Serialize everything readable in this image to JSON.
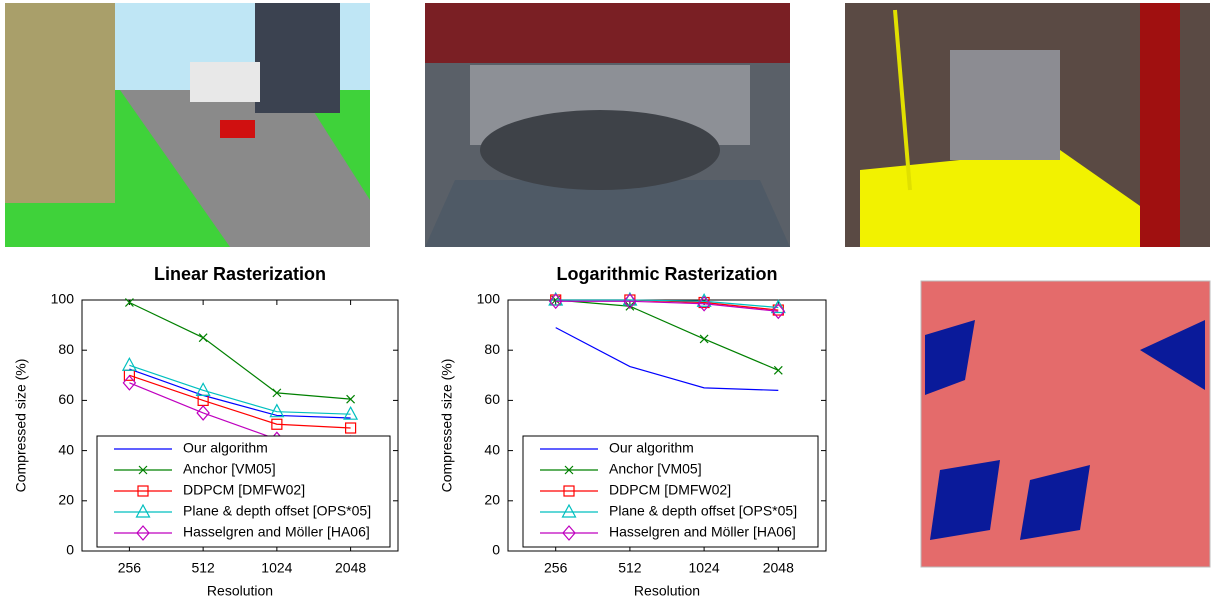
{
  "chart_data": [
    {
      "type": "line",
      "title": "Linear Rasterization",
      "xlabel": "Resolution",
      "ylabel": "Compressed size (%)",
      "categories": [
        "256",
        "512",
        "1024",
        "2048"
      ],
      "ylim": [
        0,
        100
      ],
      "yticks": [
        0,
        20,
        40,
        60,
        80,
        100
      ],
      "series": [
        {
          "name": "Our algorithm",
          "color": "#0000ff",
          "values": [
            72.5,
            62,
            54,
            53
          ]
        },
        {
          "name": "Anchor [VM05]",
          "color": "#008000",
          "marker": "x",
          "values": [
            99,
            85,
            63,
            60.5
          ]
        },
        {
          "name": "DDPCM [DMFW02]",
          "color": "#ff0000",
          "marker": "square",
          "values": [
            70,
            60,
            50.5,
            49
          ]
        },
        {
          "name": "Plane & depth offset [OPS*05]",
          "color": "#00bfbf",
          "marker": "triangle",
          "values": [
            74,
            64,
            55.5,
            54.5
          ]
        },
        {
          "name": "Hasselgren and Möller [HA06]",
          "color": "#bf00bf",
          "marker": "diamond",
          "values": [
            67,
            55,
            44.5,
            43
          ]
        }
      ]
    },
    {
      "type": "line",
      "title": "Logarithmic Rasterization",
      "xlabel": "Resolution",
      "ylabel": "Compressed size (%)",
      "categories": [
        "256",
        "512",
        "1024",
        "2048"
      ],
      "ylim": [
        0,
        100
      ],
      "yticks": [
        0,
        20,
        40,
        60,
        80,
        100
      ],
      "series": [
        {
          "name": "Our algorithm",
          "color": "#0000ff",
          "values": [
            89,
            73.5,
            65,
            64
          ]
        },
        {
          "name": "Anchor [VM05]",
          "color": "#008000",
          "marker": "x",
          "values": [
            100,
            97.5,
            84.5,
            72
          ]
        },
        {
          "name": "DDPCM [DMFW02]",
          "color": "#ff0000",
          "marker": "square",
          "values": [
            100,
            100,
            99,
            96
          ]
        },
        {
          "name": "Plane & depth offset [OPS*05]",
          "color": "#00bfbf",
          "marker": "triangle",
          "values": [
            100,
            100,
            99.5,
            97
          ]
        },
        {
          "name": "Hasselgren and Möller [HA06]",
          "color": "#bf00bf",
          "marker": "diamond",
          "values": [
            99.5,
            99.5,
            98.5,
            95.5
          ]
        }
      ]
    }
  ]
}
